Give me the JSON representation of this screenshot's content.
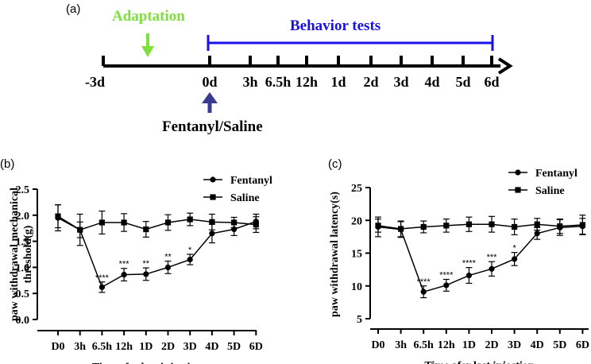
{
  "timeline": {
    "panel_label": "(a)",
    "adaptation_label": "Adaptation",
    "behavior_label": "Behavior tests",
    "start_label": "-3d",
    "ticks": [
      "0d",
      "3h",
      "6.5h",
      "12h",
      "1d",
      "2d",
      "3d",
      "4d",
      "5d",
      "6d"
    ],
    "injection_label": "Fentanyl/Saline",
    "colors": {
      "adaptation": "#7ee03c",
      "behavior": "#1a10e8",
      "injection_arrow": "#3b3a93",
      "axis": "#000000"
    }
  },
  "chart_data": [
    {
      "type": "line",
      "panel_label": "(b)",
      "title": "",
      "xlabel": "Time afer last injection",
      "ylabel_lines": [
        "paw withdrawal mechanical",
        "threshold(g)"
      ],
      "ylim": [
        0,
        2.5
      ],
      "yticks": [
        "0.0",
        "0.5",
        "1.0",
        "1.5",
        "2.0",
        "2.5"
      ],
      "yticks_values": [
        0,
        0.5,
        1.0,
        1.5,
        2.0,
        2.5
      ],
      "categories": [
        "D0",
        "3h",
        "6.5h",
        "12h",
        "1D",
        "2D",
        "3D",
        "4D",
        "5D",
        "6D"
      ],
      "series": [
        {
          "name": "Fentanyl",
          "marker": "circle",
          "values": [
            1.95,
            1.72,
            0.62,
            0.86,
            0.87,
            1.0,
            1.15,
            1.65,
            1.73,
            1.88
          ],
          "errors": [
            0.25,
            0.15,
            0.1,
            0.12,
            0.12,
            0.12,
            0.1,
            0.18,
            0.12,
            0.14
          ]
        },
        {
          "name": "Saline",
          "marker": "square",
          "values": [
            1.98,
            1.72,
            1.86,
            1.86,
            1.73,
            1.86,
            1.92,
            1.87,
            1.86,
            1.82
          ],
          "errors": [
            0.22,
            0.3,
            0.22,
            0.17,
            0.15,
            0.15,
            0.12,
            0.15,
            0.1,
            0.15
          ]
        }
      ],
      "significance": [
        {
          "index": 2,
          "text": "****"
        },
        {
          "index": 3,
          "text": "***"
        },
        {
          "index": 4,
          "text": "**"
        },
        {
          "index": 5,
          "text": "**"
        },
        {
          "index": 6,
          "text": "*"
        }
      ],
      "legend": "top-right"
    },
    {
      "type": "line",
      "panel_label": "(c)",
      "title": "",
      "xlabel": "Time afer last injection",
      "ylabel_lines": [
        "paw withdrawal latency(s)"
      ],
      "ylim": [
        5,
        25
      ],
      "yticks": [
        "5",
        "10",
        "15",
        "20",
        "25"
      ],
      "yticks_values": [
        5,
        10,
        15,
        20,
        25
      ],
      "categories": [
        "D0",
        "3h",
        "6.5h",
        "12h",
        "1D",
        "2D",
        "3D",
        "4D",
        "5D",
        "6D"
      ],
      "series": [
        {
          "name": "Fentanyl",
          "marker": "circle",
          "values": [
            19.0,
            18.6,
            9.1,
            10.1,
            11.6,
            12.6,
            14.1,
            18.0,
            18.9,
            19.1
          ],
          "errors": [
            1.5,
            1.2,
            0.9,
            0.9,
            1.2,
            1.1,
            1.0,
            0.9,
            1.2,
            1.2
          ]
        },
        {
          "name": "Saline",
          "marker": "square",
          "values": [
            19.2,
            18.7,
            19.0,
            19.2,
            19.4,
            19.4,
            19.0,
            19.4,
            19.1,
            19.3
          ],
          "errors": [
            1.0,
            1.2,
            0.9,
            1.0,
            1.1,
            1.2,
            1.2,
            0.9,
            1.1,
            1.5
          ]
        }
      ],
      "significance": [
        {
          "index": 2,
          "text": "****"
        },
        {
          "index": 3,
          "text": "****"
        },
        {
          "index": 4,
          "text": "****"
        },
        {
          "index": 5,
          "text": "***"
        },
        {
          "index": 6,
          "text": "*"
        }
      ],
      "legend": "top-right"
    }
  ]
}
